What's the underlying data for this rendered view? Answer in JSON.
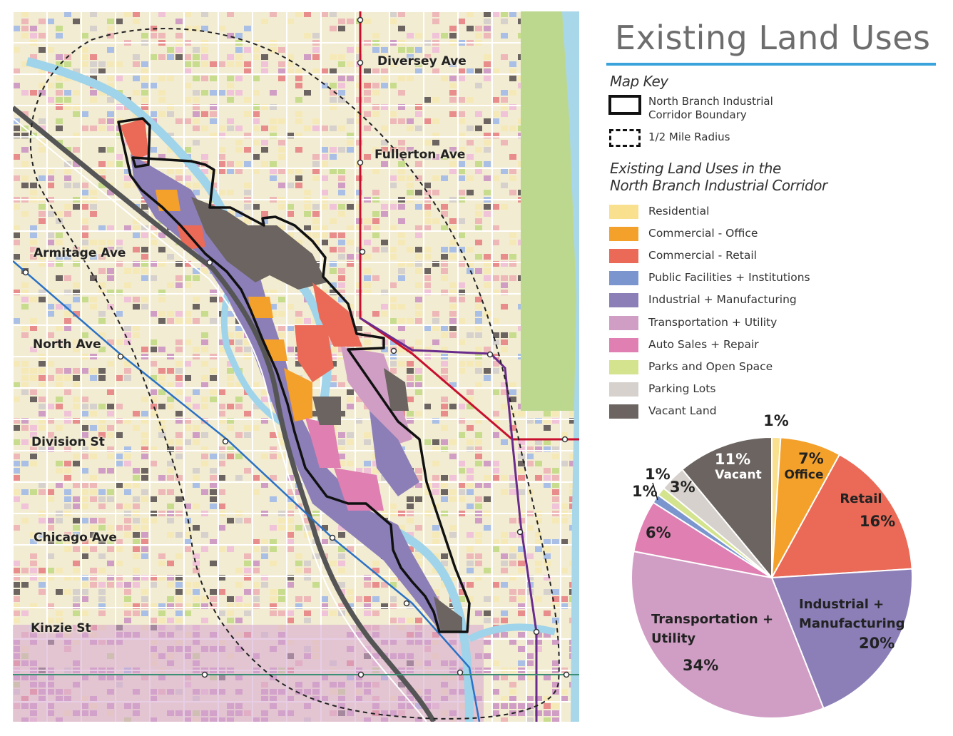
{
  "title": "Existing Land Uses",
  "map_key": {
    "heading": "Map Key",
    "boundary_label_line1": "North Branch Industrial",
    "boundary_label_line2": "Corridor Boundary",
    "radius_label": "1/2 Mile Radius"
  },
  "legend": {
    "heading_line1": "Existing Land Uses in the",
    "heading_line2": "North Branch Industrial Corridor",
    "items": [
      {
        "label": "Residential",
        "color": "#f9e08e"
      },
      {
        "label": "Commercial - Office",
        "color": "#f4a12b"
      },
      {
        "label": "Commercial - Retail",
        "color": "#ea6a57"
      },
      {
        "label": "Public Facilities + Institutions",
        "color": "#7b96cf"
      },
      {
        "label": "Industrial + Manufacturing",
        "color": "#8c7fb8"
      },
      {
        "label": "Transportation + Utility",
        "color": "#d09ec5"
      },
      {
        "label": "Auto Sales + Repair",
        "color": "#df7fb2"
      },
      {
        "label": "Parks and Open Space",
        "color": "#d4e38e"
      },
      {
        "label": "Parking Lots",
        "color": "#d6d1cc"
      },
      {
        "label": "Vacant Land",
        "color": "#6b6460"
      }
    ]
  },
  "map": {
    "street_labels": [
      "Diversey Ave",
      "Fullerton Ave",
      "Armitage Ave",
      "North Ave",
      "Division St",
      "Chicago Ave",
      "Kinzie St"
    ]
  },
  "chart_data": {
    "type": "pie",
    "slices": [
      {
        "name": "Residential",
        "value": 1,
        "color": "#f9e08e",
        "label": "1%"
      },
      {
        "name": "Office",
        "value": 7,
        "color": "#f4a12b",
        "label": "7%"
      },
      {
        "name": "Retail",
        "value": 16,
        "color": "#ea6a57",
        "label": "16%"
      },
      {
        "name": "Industrial + Manufacturing",
        "value": 20,
        "color": "#8c7fb8",
        "label": "20%"
      },
      {
        "name": "Transportation + Utility",
        "value": 34,
        "color": "#d09ec5",
        "label": "34%"
      },
      {
        "name": "Auto Sales + Repair",
        "value": 6,
        "color": "#df7fb2",
        "label": "6%"
      },
      {
        "name": "Public Facilities + Institutions",
        "value": 1,
        "color": "#7b96cf",
        "label": "1%"
      },
      {
        "name": "Parks and Open Space",
        "value": 1,
        "color": "#d4e38e",
        "label": "1%"
      },
      {
        "name": "Parking Lots",
        "value": 3,
        "color": "#d6d1cc",
        "label": "3%"
      },
      {
        "name": "Vacant",
        "value": 11,
        "color": "#6b6460",
        "label": "11%"
      }
    ],
    "slice_text": {
      "office": "Office",
      "retail": "Retail",
      "industrial_line1": "Industrial +",
      "industrial_line2": "Manufacturing",
      "transport_line1": "Transportation +",
      "transport_line2": "Utility",
      "vacant": "Vacant"
    }
  }
}
